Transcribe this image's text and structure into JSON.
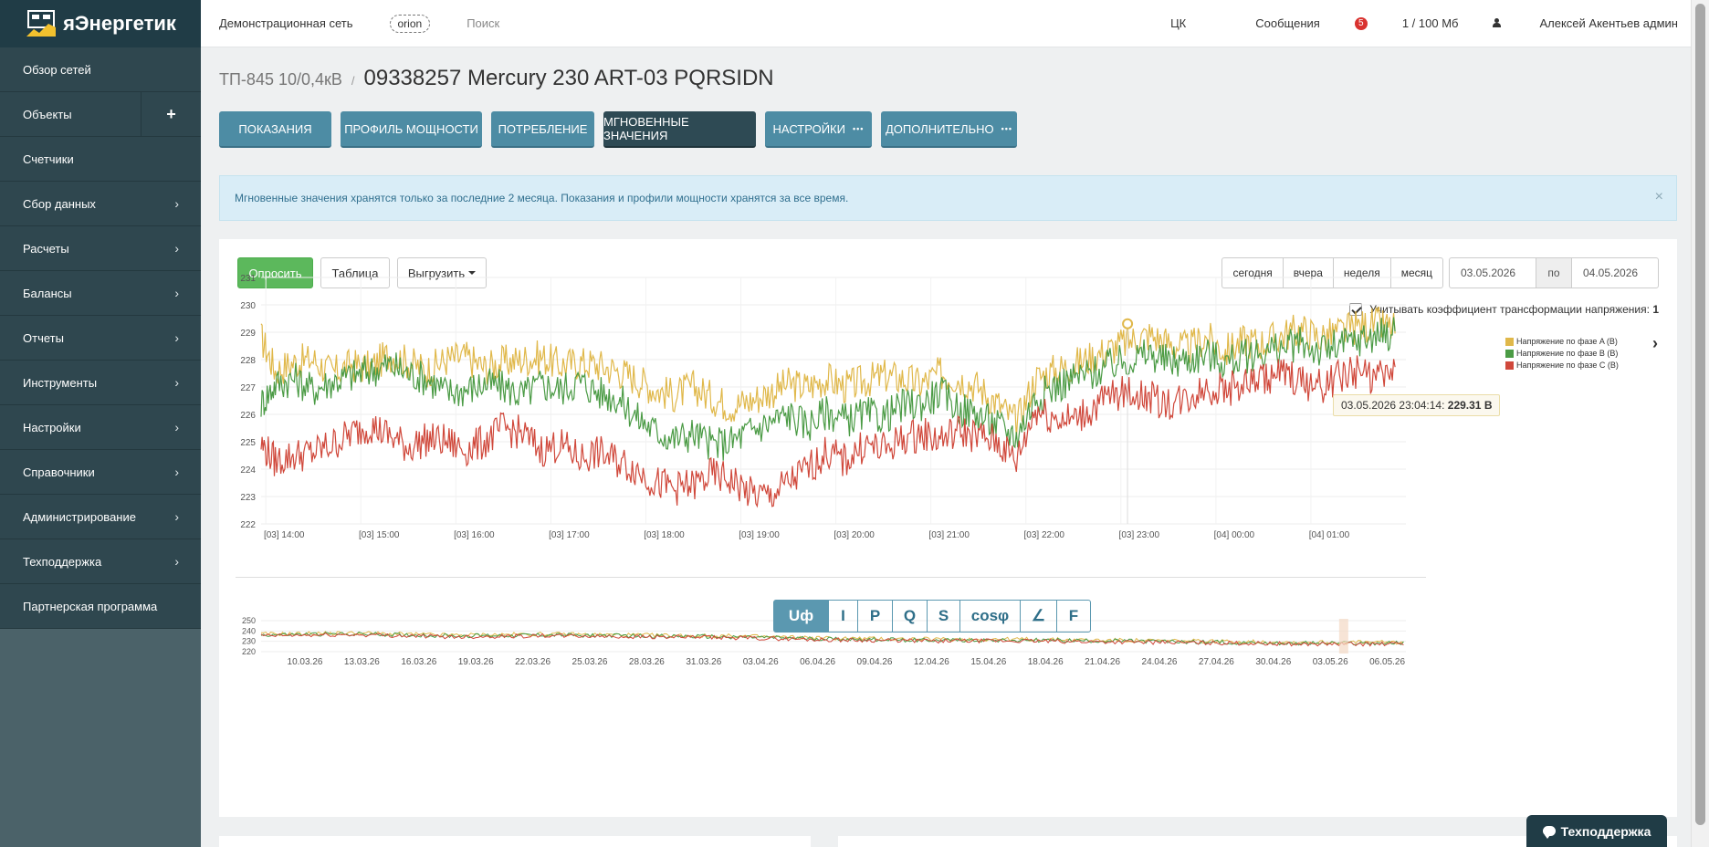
{
  "sidebar": {
    "logo_text": "яЭнергетик",
    "items": [
      {
        "label": "Обзор сетей",
        "chevron": false
      },
      {
        "label": "Объекты",
        "chevron": false,
        "plus": "+"
      },
      {
        "label": "Счетчики",
        "chevron": false
      },
      {
        "label": "Сбор данных",
        "chevron": true
      },
      {
        "label": "Расчеты",
        "chevron": true
      },
      {
        "label": "Балансы",
        "chevron": true
      },
      {
        "label": "Отчеты",
        "chevron": true
      },
      {
        "label": "Инструменты",
        "chevron": true
      },
      {
        "label": "Настройки",
        "chevron": true
      },
      {
        "label": "Справочники",
        "chevron": true
      },
      {
        "label": "Администрирование",
        "chevron": true
      },
      {
        "label": "Техподдержка",
        "chevron": true
      },
      {
        "label": "Партнерская программа",
        "chevron": false
      }
    ]
  },
  "topbar": {
    "network": "Демонстрационная сеть",
    "tag": "orion",
    "search": "Поиск",
    "ck": "ЦК",
    "messages": "Сообщения",
    "messages_count": "5",
    "storage": "1 / 100 Мб",
    "user": "Алексей Акентьев админ"
  },
  "breadcrumb": {
    "parent": "ТП-845 10/0,4кВ",
    "sep": "/",
    "title": "09338257 Mercury 230 ART-03 PQRSIDN"
  },
  "tabs": [
    {
      "label": "ПОКАЗАНИЯ",
      "active": false,
      "dots": false
    },
    {
      "label": "ПРОФИЛЬ МОЩНОСТИ",
      "active": false,
      "dots": false
    },
    {
      "label": "ПОТРЕБЛЕНИЕ",
      "active": false,
      "dots": false
    },
    {
      "label": "МГНОВЕННЫЕ ЗНАЧЕНИЯ",
      "active": true,
      "dots": false
    },
    {
      "label": "НАСТРОЙКИ",
      "active": false,
      "dots": true
    },
    {
      "label": "ДОПОЛНИТЕЛЬНО",
      "active": false,
      "dots": true
    }
  ],
  "tab_dots": "•••",
  "alert": {
    "text": "Мгновенные значения хранятся только за последние 2 месяца. Показания и профили мощности хранятся за все время.",
    "close": "×"
  },
  "toolbar": {
    "poll": "Опросить",
    "table": "Таблица",
    "export": "Выгрузить"
  },
  "range": {
    "today": "сегодня",
    "yesterday": "вчера",
    "week": "неделя",
    "month": "месяц",
    "from": "03.05.2026",
    "po": "по",
    "to": "04.05.2026"
  },
  "koef": {
    "label": "Учитывать коэффициент трансформации напряжения:",
    "value": "1"
  },
  "tooltip": {
    "time": "03.05.2026 23:04:14:",
    "value": "229.31 В"
  },
  "params": [
    "Uф",
    "I",
    "P",
    "Q",
    "S",
    "cosφ",
    "∠",
    "F"
  ],
  "support": {
    "label": "Техподдержка"
  },
  "colors": {
    "phase_a": "#e0b84a",
    "phase_b": "#4b9b45",
    "phase_c": "#d0483b",
    "accent": "#4d8ca4"
  },
  "chart_data": [
    {
      "type": "line",
      "title": "",
      "xlabel": "",
      "ylabel": "",
      "ylim": [
        222,
        231
      ],
      "yticks": [
        222,
        223,
        224,
        225,
        226,
        227,
        228,
        229,
        230,
        231
      ],
      "xticks": [
        "[03] 14:00",
        "[03] 15:00",
        "[03] 16:00",
        "[03] 17:00",
        "[03] 18:00",
        "[03] 19:00",
        "[03] 20:00",
        "[03] 21:00",
        "[03] 22:00",
        "[03] 23:00",
        "[04] 00:00",
        "[04] 01:00"
      ],
      "x_hours": [
        13.95,
        14.1,
        14.3,
        14.5,
        14.7,
        14.9,
        15.1,
        15.3,
        15.5,
        15.7,
        15.9,
        16.1,
        16.3,
        16.5,
        16.7,
        16.9,
        17.1,
        17.3,
        17.5,
        17.7,
        17.9,
        18.1,
        18.3,
        18.5,
        18.7,
        18.9,
        19.1,
        19.3,
        19.5,
        19.7,
        19.9,
        20.1,
        20.3,
        20.5,
        20.7,
        20.9,
        21.1,
        21.3,
        21.5,
        21.7,
        21.9,
        22.1,
        22.3,
        22.5,
        22.7,
        22.9,
        23.1,
        23.3,
        23.5,
        23.7,
        23.9,
        24.1,
        24.3,
        24.5,
        24.7,
        24.9,
        25.1,
        25.3,
        25.5,
        25.7,
        25.9
      ],
      "series": [
        {
          "name": "Напряжение по фазе A (В)",
          "values": [
            228.8,
            227.6,
            227.9,
            228.0,
            227.5,
            227.8,
            227.7,
            228.2,
            227.9,
            227.6,
            228.0,
            228.1,
            227.7,
            227.9,
            228.0,
            228.1,
            227.8,
            227.9,
            227.8,
            227.6,
            227.3,
            226.9,
            226.7,
            227.0,
            226.6,
            226.3,
            226.5,
            226.8,
            227.1,
            227.0,
            227.3,
            227.0,
            227.2,
            227.4,
            227.3,
            227.1,
            227.5,
            227.3,
            227.0,
            226.4,
            225.7,
            227.3,
            227.6,
            227.8,
            228.1,
            228.4,
            228.7,
            228.9,
            228.6,
            228.4,
            228.8,
            228.3,
            228.7,
            228.6,
            228.9,
            229.1,
            228.8,
            229.0,
            229.2,
            229.3,
            229.1
          ]
        },
        {
          "name": "Напряжение по фазе B (В)",
          "values": [
            226.4,
            227.1,
            227.3,
            226.9,
            227.2,
            227.4,
            227.6,
            227.8,
            227.5,
            227.3,
            226.8,
            226.9,
            227.1,
            227.0,
            226.7,
            227.1,
            226.9,
            227.2,
            226.8,
            226.6,
            225.9,
            225.4,
            225.1,
            225.3,
            224.9,
            225.0,
            225.4,
            225.7,
            226.0,
            225.6,
            226.1,
            225.8,
            226.0,
            225.9,
            226.3,
            226.4,
            226.8,
            226.2,
            226.0,
            225.6,
            225.2,
            226.6,
            227.0,
            227.3,
            227.5,
            227.8,
            228.0,
            228.2,
            227.9,
            228.0,
            228.2,
            227.9,
            228.1,
            228.3,
            228.4,
            228.6,
            228.3,
            228.5,
            228.7,
            228.9,
            229.0
          ]
        },
        {
          "name": "Напряжение по фазе C (В)",
          "values": [
            224.9,
            224.3,
            224.5,
            224.6,
            224.9,
            225.3,
            225.6,
            225.2,
            224.8,
            225.1,
            225.0,
            224.7,
            225.0,
            225.5,
            225.3,
            224.7,
            224.9,
            224.4,
            224.6,
            224.3,
            224.0,
            223.5,
            223.3,
            223.4,
            223.8,
            223.6,
            223.1,
            223.0,
            223.5,
            224.0,
            224.6,
            224.3,
            224.9,
            224.7,
            225.1,
            225.3,
            225.1,
            225.4,
            225.2,
            225.0,
            224.3,
            226.2,
            225.9,
            225.8,
            226.2,
            226.7,
            226.8,
            226.6,
            226.4,
            226.6,
            227.0,
            226.9,
            227.1,
            227.3,
            227.5,
            227.2,
            227.0,
            227.4,
            227.6,
            227.3,
            227.5
          ]
        }
      ],
      "grid": true,
      "legend": "top-right"
    },
    {
      "type": "line",
      "title": "",
      "ylim": [
        220,
        250
      ],
      "yticks": [
        220,
        230,
        240,
        250
      ],
      "xticks": [
        "10.03.26",
        "13.03.26",
        "16.03.26",
        "19.03.26",
        "22.03.26",
        "25.03.26",
        "28.03.26",
        "31.03.26",
        "03.04.26",
        "06.04.26",
        "09.04.26",
        "12.04.26",
        "15.04.26",
        "18.04.26",
        "21.04.26",
        "24.04.26",
        "27.04.26",
        "30.04.26",
        "03.05.26",
        "06.05.26"
      ],
      "x_days": [
        0,
        5,
        10,
        15,
        20,
        25,
        30,
        35,
        40,
        45,
        50,
        55,
        60
      ],
      "values": [
        237,
        238,
        236,
        237,
        236,
        235,
        233,
        232,
        232,
        231,
        230,
        229,
        229
      ],
      "note": "navigator"
    }
  ]
}
